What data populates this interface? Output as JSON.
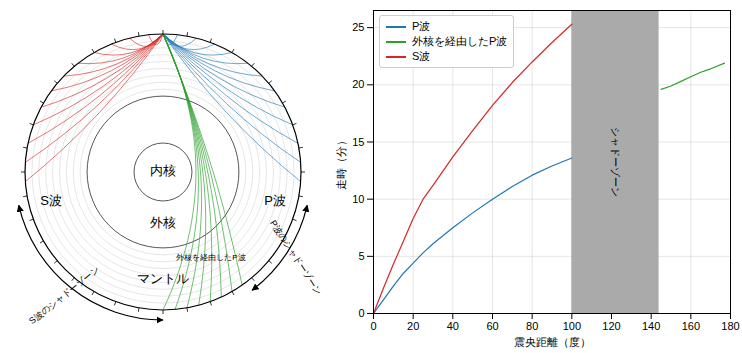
{
  "diagram": {
    "labels": {
      "inner_core": "内核",
      "outer_core": "外核",
      "mantle": "マントル",
      "s_wave": "S波",
      "p_wave": "P波",
      "core_p_wave": "外核を経由したP波",
      "s_shadow": "S波のシャドーゾーン",
      "p_shadow": "P波のシャドーゾーン"
    },
    "s_shadow_zone": [
      103,
      180
    ],
    "p_shadow_zone": [
      103,
      143
    ]
  },
  "chart_data": {
    "type": "line",
    "x_label": "震央距離（度）",
    "y_label": "走時（分）",
    "xlim": [
      0,
      180
    ],
    "xticks": [
      0,
      20,
      40,
      60,
      80,
      100,
      120,
      140,
      160,
      180
    ],
    "ylim": [
      0,
      26.5
    ],
    "yticks": [
      0,
      5,
      10,
      15,
      20,
      25
    ],
    "grid": true,
    "legend": "upper left",
    "shadow_zone": {
      "x": [
        100,
        144
      ],
      "label": "シャドーゾーン",
      "color": "#aaaaaa"
    },
    "series": [
      {
        "name": "P波",
        "color": "#1f77b4",
        "x": [
          0,
          5,
          10,
          15,
          20,
          25,
          30,
          40,
          50,
          60,
          70,
          80,
          90,
          100
        ],
        "values": [
          0,
          1.2,
          2.4,
          3.5,
          4.4,
          5.3,
          6.1,
          7.5,
          8.8,
          10.0,
          11.1,
          12.1,
          12.9,
          13.6
        ]
      },
      {
        "name": "外核を経由したP波",
        "color": "#2ca02c",
        "x": [
          145,
          150,
          155,
          160,
          165,
          170,
          177
        ],
        "values": [
          19.6,
          19.9,
          20.3,
          20.7,
          21.1,
          21.4,
          21.9
        ]
      },
      {
        "name": "S波",
        "color": "#d62728",
        "x": [
          0,
          5,
          10,
          15,
          20,
          25,
          30,
          40,
          50,
          60,
          70,
          80,
          90,
          100
        ],
        "values": [
          0,
          2.2,
          4.3,
          6.3,
          8.3,
          10.0,
          11.2,
          13.7,
          16.0,
          18.2,
          20.2,
          22.0,
          23.7,
          25.3
        ]
      }
    ]
  }
}
